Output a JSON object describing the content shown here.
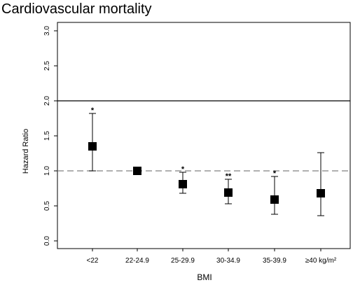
{
  "chart_data": {
    "type": "scatter",
    "title": "Cardiovascular mortality",
    "xlabel": "BMI",
    "ylabel": "Hazard Ratio",
    "categories": [
      "<22",
      "22-24.9",
      "25-29.9",
      "30-34.9",
      "35-39.9",
      "≥40 kg/m²"
    ],
    "series": [
      {
        "values": [
          1.35,
          1.0,
          0.81,
          0.69,
          0.59,
          0.68
        ],
        "ci_lower": [
          1.0,
          1.0,
          0.68,
          0.53,
          0.38,
          0.36
        ],
        "ci_upper": [
          1.82,
          1.0,
          0.98,
          0.88,
          0.92,
          1.26
        ],
        "significance": [
          "*",
          "",
          "*",
          "**",
          "*",
          ""
        ]
      }
    ],
    "ylim": [
      0.0,
      3.0
    ],
    "yticks": [
      "0.0",
      "0.5",
      "1.0",
      "1.5",
      "2.0",
      "2.5",
      "3.0"
    ],
    "reference_line": 1.0,
    "horizontal_line": 2.0,
    "grid": false,
    "colors": {
      "marker": "#000000",
      "reference_line": "#808080",
      "axis": "#000000"
    }
  }
}
